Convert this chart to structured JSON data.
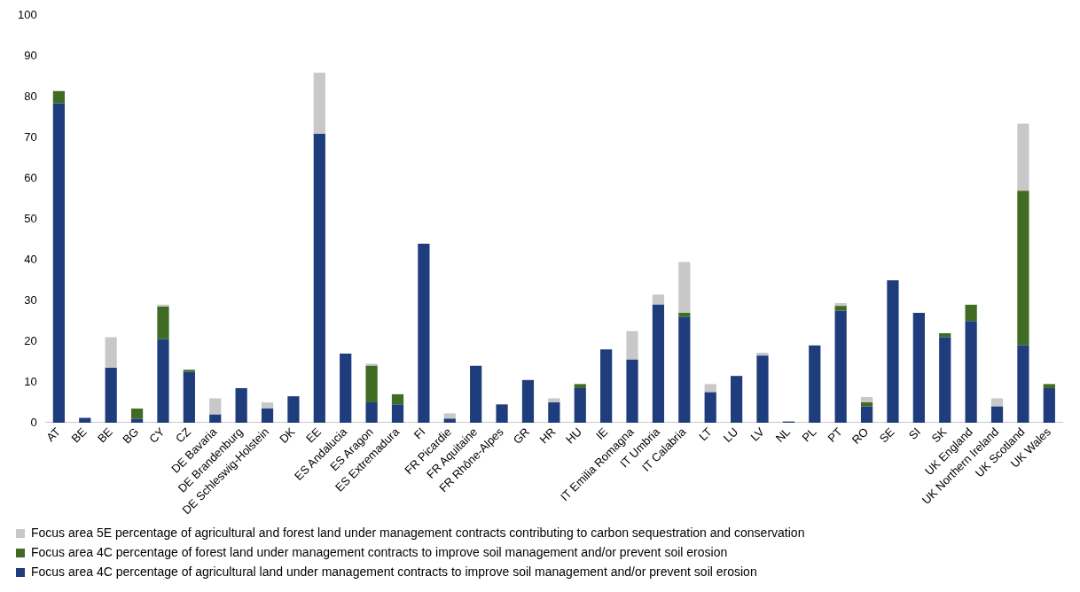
{
  "chart_data": {
    "type": "bar",
    "stacked": true,
    "categories": [
      "AT",
      "BE",
      "BE",
      "BG",
      "CY",
      "CZ",
      "DE Bavaria",
      "DE Brandenburg",
      "DE Schleswig-Holstein",
      "DK",
      "EE",
      "ES Andalucia",
      "ES Aragon",
      "ES Extremadura",
      "FI",
      "FR Picardie",
      "FR Aquitaine",
      "FR Rhône-Alpes",
      "GR",
      "HR",
      "HU",
      "IE",
      "IT Emilia Romagna",
      "IT Umbria",
      "IT Calabria",
      "LT",
      "LU",
      "LV",
      "NL",
      "PL",
      "PT",
      "RO",
      "SE",
      "SI",
      "SK",
      "UK England",
      "UK Northern Ireland",
      "UK Scotland",
      "UK Wales"
    ],
    "series": [
      {
        "name": "Focus area 4C percentage of agricultural land under management contracts to improve soil management and/or prevent soil erosion",
        "color": "#1f3d7c",
        "values": [
          78.5,
          1.2,
          13.5,
          1,
          20.5,
          12.5,
          2,
          8.5,
          3.5,
          6.5,
          71,
          17,
          5,
          4.5,
          44,
          1,
          14,
          4.5,
          10.5,
          5,
          8.5,
          18,
          15.5,
          29,
          26,
          7.5,
          11.5,
          16.5,
          0.3,
          19,
          27.5,
          4,
          35,
          27,
          21,
          25,
          4,
          19,
          8.5
        ]
      },
      {
        "name": "Focus area 4C percentage of forest land under management contracts to improve soil management and/or prevent soil erosion",
        "color": "#3f6b22",
        "values": [
          3,
          0,
          0,
          2.5,
          8,
          0.5,
          0,
          0,
          0,
          0,
          0,
          0,
          9,
          2.5,
          0,
          0,
          0,
          0,
          0,
          0,
          1,
          0,
          0,
          0,
          1,
          0,
          0,
          0,
          0,
          0,
          1.2,
          1,
          0,
          0,
          1,
          4,
          0,
          38,
          1
        ]
      },
      {
        "name": "Focus area 5E percentage of agricultural and forest land under management contracts contributing to carbon sequestration and conservation",
        "color": "#c8c8c8",
        "values": [
          0,
          0,
          7.5,
          0,
          0.5,
          0,
          4,
          0,
          1.5,
          0,
          15,
          0,
          0.5,
          0,
          0,
          1.3,
          0,
          0,
          0,
          1,
          0,
          0,
          7,
          2.5,
          12.5,
          2,
          0,
          0.7,
          0,
          0,
          0.7,
          1.3,
          0,
          0,
          0,
          0,
          2,
          16.5,
          0
        ]
      }
    ],
    "ylim": [
      0,
      100
    ],
    "yticks": [
      0,
      10,
      20,
      30,
      40,
      50,
      60,
      70,
      80,
      90,
      100
    ],
    "grid": false,
    "legend": "bottom"
  }
}
